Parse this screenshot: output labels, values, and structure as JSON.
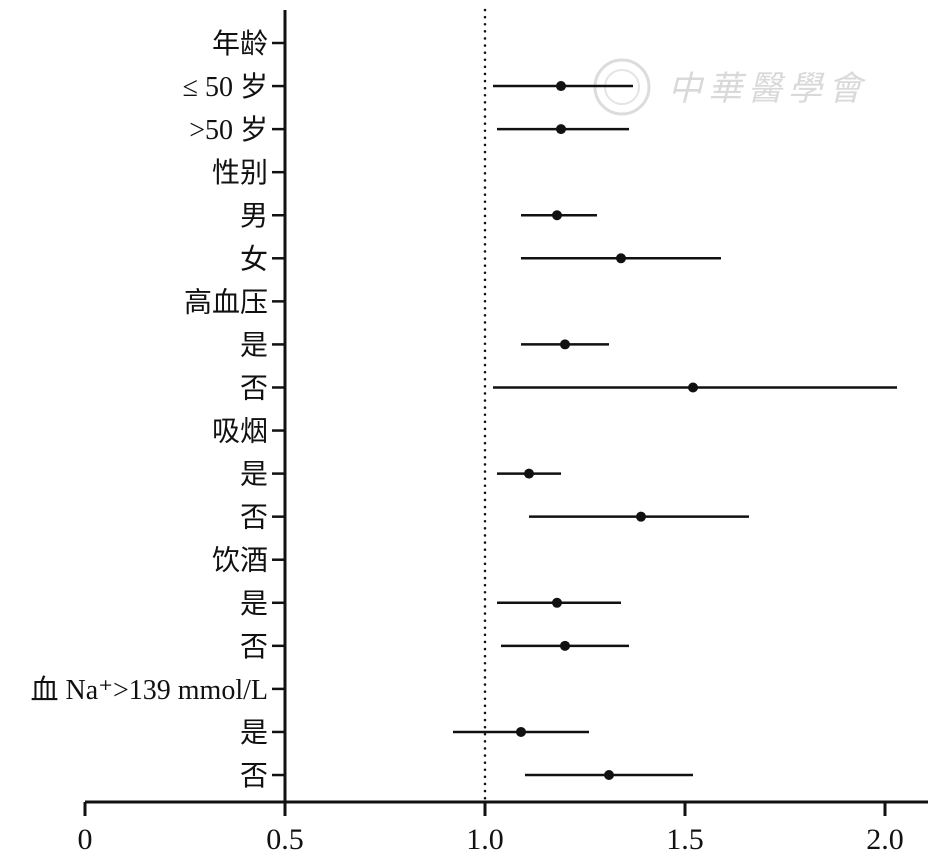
{
  "watermark": {
    "text": "中華醫學會"
  },
  "chart_data": {
    "type": "scatter",
    "subtype": "forest-plot",
    "title": "",
    "xlabel": "",
    "ylabel": "",
    "xlim": [
      0,
      2.1
    ],
    "reference_line": 1.0,
    "reference_line_style": "dotted",
    "grid": false,
    "x_ticks": [
      {
        "value": 0,
        "label": "0"
      },
      {
        "value": 0.5,
        "label": "0.5"
      },
      {
        "value": 1.0,
        "label": "1.0"
      },
      {
        "value": 1.5,
        "label": "1.5"
      },
      {
        "value": 2.0,
        "label": "2.0"
      }
    ],
    "rows": [
      {
        "label": "年龄",
        "group": true
      },
      {
        "label": "≤ 50 岁",
        "estimate": 1.19,
        "ci": [
          1.02,
          1.37
        ]
      },
      {
        "label": ">50 岁",
        "estimate": 1.19,
        "ci": [
          1.03,
          1.36
        ]
      },
      {
        "label": "性别",
        "group": true
      },
      {
        "label": "男",
        "estimate": 1.18,
        "ci": [
          1.09,
          1.28
        ]
      },
      {
        "label": "女",
        "estimate": 1.34,
        "ci": [
          1.09,
          1.59
        ]
      },
      {
        "label": "高血压",
        "group": true
      },
      {
        "label": "是",
        "estimate": 1.2,
        "ci": [
          1.09,
          1.31
        ]
      },
      {
        "label": "否",
        "estimate": 1.52,
        "ci": [
          1.02,
          2.03
        ]
      },
      {
        "label": "吸烟",
        "group": true
      },
      {
        "label": "是",
        "estimate": 1.11,
        "ci": [
          1.03,
          1.19
        ]
      },
      {
        "label": "否",
        "estimate": 1.39,
        "ci": [
          1.11,
          1.66
        ]
      },
      {
        "label": "饮酒",
        "group": true
      },
      {
        "label": "是",
        "estimate": 1.18,
        "ci": [
          1.03,
          1.34
        ]
      },
      {
        "label": "否",
        "estimate": 1.2,
        "ci": [
          1.04,
          1.36
        ]
      },
      {
        "label": "血 Na⁺>139 mmol/L",
        "group": true
      },
      {
        "label": "是",
        "estimate": 1.09,
        "ci": [
          0.92,
          1.26
        ]
      },
      {
        "label": "否",
        "estimate": 1.31,
        "ci": [
          1.1,
          1.52
        ]
      }
    ]
  }
}
